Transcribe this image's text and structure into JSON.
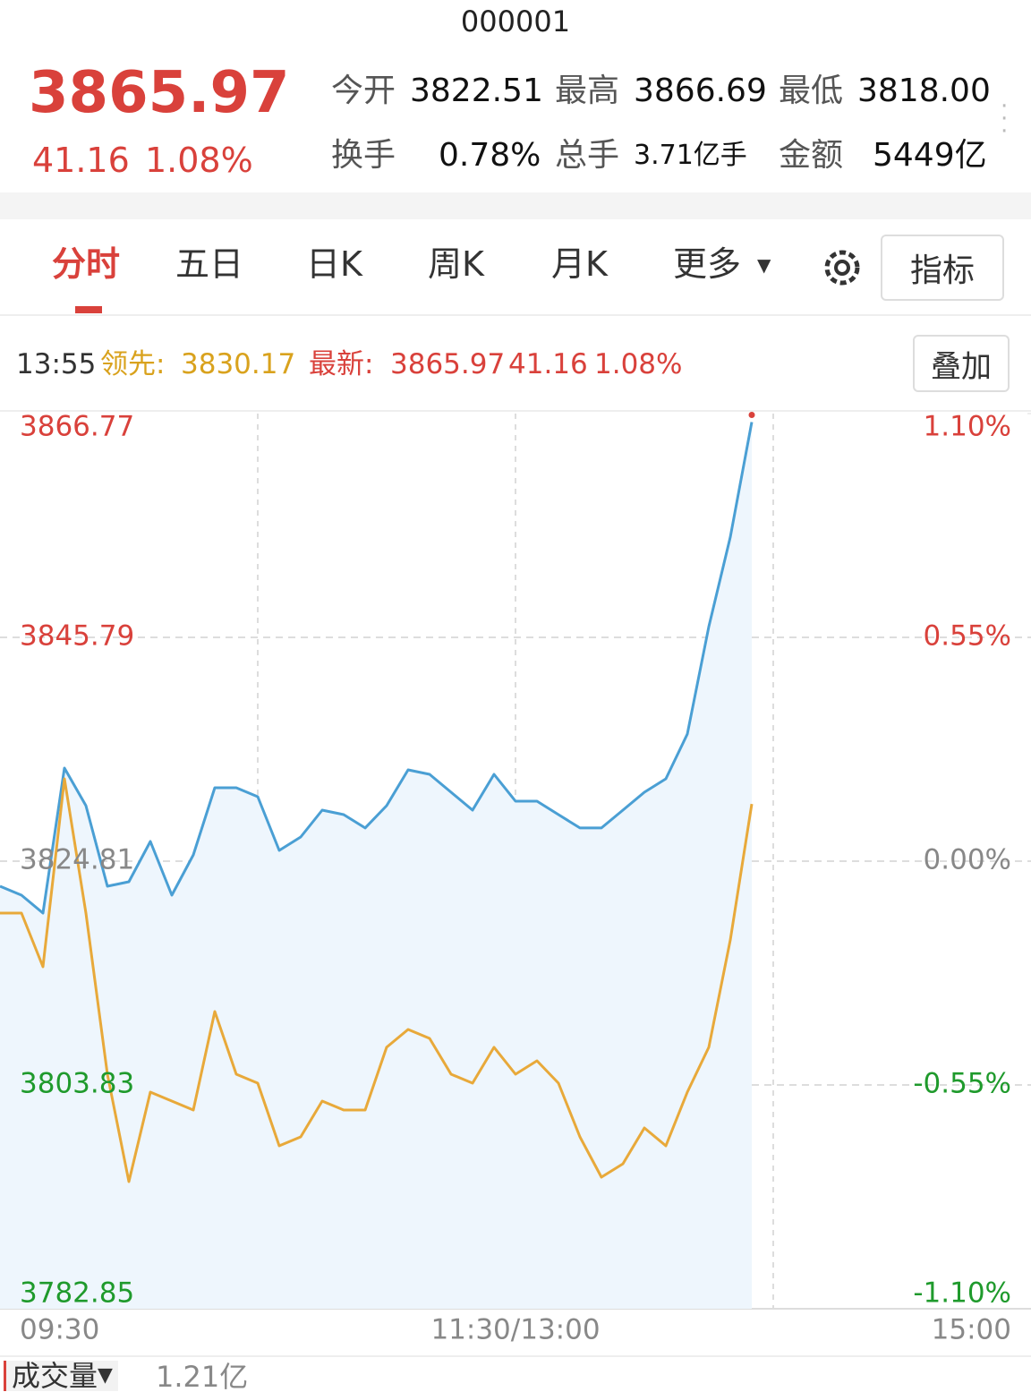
{
  "header": {
    "code": "000001",
    "price": "3865.97",
    "change": "41.16",
    "change_pct": "1.08%",
    "stats": [
      {
        "label": "今开",
        "value": "3822.51"
      },
      {
        "label": "最高",
        "value": "3866.69"
      },
      {
        "label": "最低",
        "value": "3818.00"
      },
      {
        "label": "换手",
        "value": "0.78%"
      },
      {
        "label": "总手",
        "value": "3.71亿手"
      },
      {
        "label": "金额",
        "value": "5449亿"
      }
    ]
  },
  "tabs": [
    "分时",
    "五日",
    "日K",
    "周K",
    "月K",
    "更多"
  ],
  "indicator_button": "指标",
  "info": {
    "time": "13:55",
    "lead_label": "领先:",
    "lead": "3830.17",
    "latest_label": "最新:",
    "latest": "3865.97",
    "change": "41.16",
    "change_pct": "1.08%",
    "overlay_button": "叠加"
  },
  "chart_data": {
    "type": "line",
    "x": [
      "09:30",
      "09:35",
      "09:40",
      "09:45",
      "09:50",
      "09:55",
      "10:00",
      "10:05",
      "10:10",
      "10:15",
      "10:20",
      "10:25",
      "10:30",
      "10:35",
      "10:40",
      "10:45",
      "10:50",
      "10:55",
      "11:00",
      "11:05",
      "11:10",
      "11:15",
      "11:20",
      "11:25",
      "11:30",
      "13:05",
      "13:10",
      "13:15",
      "13:20",
      "13:25",
      "13:30",
      "13:35",
      "13:40",
      "13:45",
      "13:50",
      "13:55"
    ],
    "series": [
      {
        "color": "#4a9fd4",
        "values": [
          3822.46,
          3821.62,
          3819.94,
          3833.54,
          3830.01,
          3822.46,
          3822.88,
          3826.66,
          3821.62,
          3825.4,
          3831.69,
          3831.69,
          3830.85,
          3825.82,
          3827.08,
          3829.59,
          3829.17,
          3827.92,
          3830.01,
          3833.37,
          3832.95,
          3831.27,
          3829.59,
          3832.95,
          3830.43,
          3830.43,
          3829.17,
          3827.92,
          3827.92,
          3829.59,
          3831.27,
          3832.53,
          3836.73,
          3846.8,
          3855.19,
          3865.97
        ]
      },
      {
        "color": "#e8a93a",
        "values": [
          3819.94,
          3819.94,
          3814.91,
          3832.53,
          3819.94,
          3804.84,
          3794.77,
          3803.16,
          3802.32,
          3801.48,
          3810.71,
          3804.84,
          3804.0,
          3798.12,
          3798.96,
          3802.32,
          3801.48,
          3801.48,
          3807.36,
          3809.03,
          3808.19,
          3804.84,
          3804.0,
          3807.36,
          3804.84,
          3806.1,
          3804.0,
          3798.96,
          3795.19,
          3796.44,
          3799.8,
          3798.12,
          3803.16,
          3807.36,
          3817.42,
          3830.17
        ]
      }
    ],
    "ylim": [
      3782.85,
      3866.77
    ],
    "yticks": [
      3866.77,
      3845.79,
      3824.81,
      3803.83,
      3782.85
    ],
    "y2lim": [
      -1.1,
      1.1
    ],
    "y2ticks": [
      {
        "value": 1.1,
        "label": "1.10%"
      },
      {
        "value": 0.55,
        "label": "0.55%"
      },
      {
        "value": 0,
        "label": "0.00%"
      },
      {
        "value": -0.55,
        "label": "-0.55%"
      },
      {
        "value": -1.1,
        "label": "-1.10%"
      }
    ],
    "xtick_labels": [
      "09:30",
      "11:30/13:00",
      "15:00"
    ],
    "grid": true
  },
  "volume": {
    "label": "成交量",
    "value": "1.21亿"
  }
}
